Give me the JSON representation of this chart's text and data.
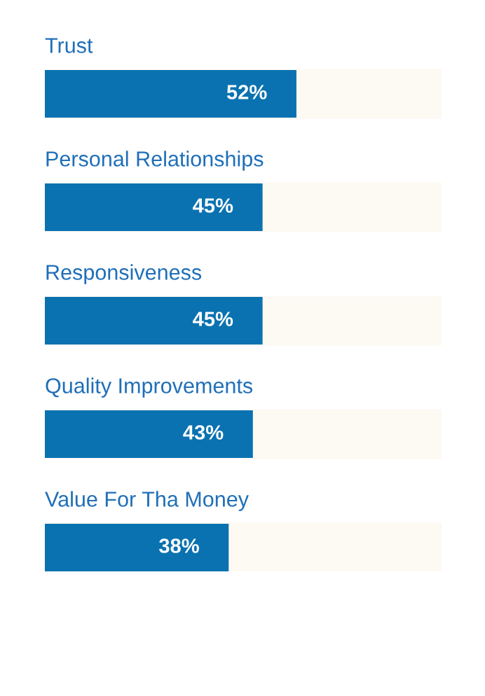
{
  "chart_data": {
    "type": "bar",
    "orientation": "horizontal",
    "categories": [
      "Trust",
      "Personal Relationships",
      "Responsiveness",
      "Quality Improvements",
      "Value For Tha Money"
    ],
    "values": [
      52,
      45,
      45,
      43,
      38
    ],
    "value_labels": [
      "52%",
      "45%",
      "45%",
      "43%",
      "38%"
    ],
    "color": "#0a72b0",
    "xlim": [
      0,
      82
    ],
    "tick_labels": false
  }
}
